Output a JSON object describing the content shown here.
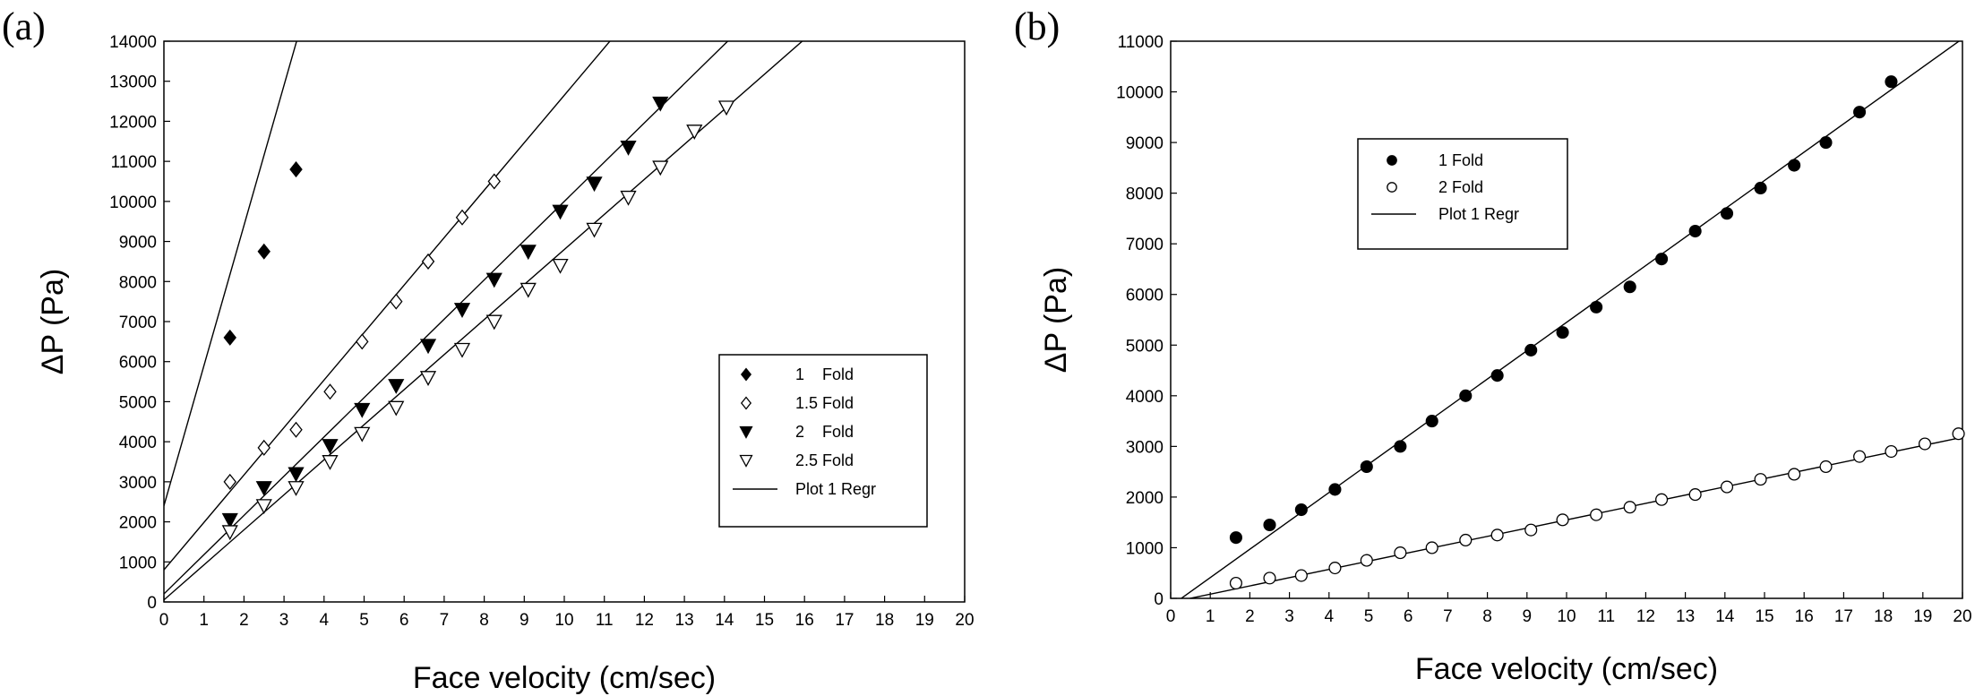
{
  "chart_data": [
    {
      "panel": "(a)",
      "type": "scatter",
      "xlabel": "Face velocity (cm/sec)",
      "ylabel": "ΔP (Pa)",
      "xlim": [
        0,
        20
      ],
      "ylim": [
        0,
        14000
      ],
      "xticks": [
        0,
        1,
        2,
        3,
        4,
        5,
        6,
        7,
        8,
        9,
        10,
        11,
        12,
        13,
        14,
        15,
        16,
        17,
        18,
        19,
        20
      ],
      "yticks": [
        0,
        1000,
        2000,
        3000,
        4000,
        5000,
        6000,
        7000,
        8000,
        9000,
        10000,
        11000,
        12000,
        13000,
        14000
      ],
      "grid": false,
      "legend_position": "lower-right",
      "series": [
        {
          "name": "1    Fold",
          "marker": "filled-diamond",
          "x": [
            1.65,
            2.5,
            3.3
          ],
          "y": [
            6600,
            8750,
            10800
          ],
          "fit": {
            "slope": 3500,
            "intercept": 2400
          }
        },
        {
          "name": "1.5 Fold",
          "marker": "open-diamond",
          "x": [
            1.65,
            2.5,
            3.3,
            4.15,
            4.95,
            5.8,
            6.6,
            7.45,
            8.25
          ],
          "y": [
            3000,
            3850,
            4300,
            5250,
            6500,
            7500,
            8500,
            9600,
            10500
          ],
          "fit": {
            "slope": 1185,
            "intercept": 800
          }
        },
        {
          "name": "2    Fold",
          "marker": "filled-triangle-down",
          "x": [
            1.65,
            2.5,
            3.3,
            4.15,
            4.95,
            5.8,
            6.6,
            7.45,
            8.25,
            9.1,
            9.9,
            10.75,
            11.6,
            12.4
          ],
          "y": [
            2050,
            2850,
            3200,
            3900,
            4800,
            5400,
            6400,
            7300,
            8050,
            8750,
            9750,
            10450,
            11350,
            12450
          ],
          "fit": {
            "slope": 980,
            "intercept": 200
          }
        },
        {
          "name": "2.5 Fold",
          "marker": "open-triangle-down",
          "x": [
            1.65,
            2.5,
            3.3,
            4.15,
            4.95,
            5.8,
            6.6,
            7.45,
            8.25,
            9.1,
            9.9,
            10.75,
            11.6,
            12.4,
            13.25,
            14.05
          ],
          "y": [
            1750,
            2400,
            2850,
            3500,
            4200,
            4850,
            5600,
            6300,
            7000,
            7800,
            8400,
            9300,
            10100,
            10850,
            11750,
            12350
          ],
          "fit": {
            "slope": 875,
            "intercept": 50
          }
        }
      ],
      "legend": [
        "1    Fold",
        "1.5 Fold",
        "2    Fold",
        "2.5 Fold",
        "Plot 1 Regr"
      ]
    },
    {
      "panel": "(b)",
      "type": "scatter",
      "xlabel": "Face velocity (cm/sec)",
      "ylabel": "ΔP (Pa)",
      "xlim": [
        0,
        20
      ],
      "ylim": [
        0,
        11000
      ],
      "xticks": [
        0,
        1,
        2,
        3,
        4,
        5,
        6,
        7,
        8,
        9,
        10,
        11,
        12,
        13,
        14,
        15,
        16,
        17,
        18,
        19,
        20
      ],
      "yticks": [
        0,
        1000,
        2000,
        3000,
        4000,
        5000,
        6000,
        7000,
        8000,
        9000,
        10000,
        11000
      ],
      "grid": false,
      "legend_position": "upper-left",
      "series": [
        {
          "name": "1 Fold",
          "marker": "filled-circle",
          "x": [
            1.65,
            2.5,
            3.3,
            4.15,
            4.95,
            5.8,
            6.6,
            7.45,
            8.25,
            9.1,
            9.9,
            10.75,
            11.6,
            12.4,
            13.25,
            14.05,
            14.9,
            15.75,
            16.55,
            17.4,
            18.2
          ],
          "y": [
            1200,
            1450,
            1750,
            2150,
            2600,
            3000,
            3500,
            4000,
            4400,
            4900,
            5250,
            5750,
            6150,
            6700,
            7250,
            7600,
            8100,
            8550,
            9000,
            9600,
            10200
          ],
          "fit": {
            "slope": 560,
            "intercept": -150
          }
        },
        {
          "name": "2 Fold",
          "marker": "open-circle",
          "x": [
            1.65,
            2.5,
            3.3,
            4.15,
            4.95,
            5.8,
            6.6,
            7.45,
            8.25,
            9.1,
            9.9,
            10.75,
            11.6,
            12.4,
            13.25,
            14.05,
            14.9,
            15.75,
            16.55,
            17.4,
            18.2,
            19.05,
            19.9
          ],
          "y": [
            300,
            400,
            450,
            600,
            750,
            900,
            1000,
            1150,
            1250,
            1350,
            1550,
            1650,
            1800,
            1950,
            2050,
            2200,
            2350,
            2450,
            2600,
            2800,
            2900,
            3050,
            3250
          ],
          "fit": {
            "slope": 163,
            "intercept": -80
          }
        }
      ],
      "legend": [
        "1 Fold",
        "2 Fold",
        "Plot 1 Regr"
      ]
    }
  ]
}
